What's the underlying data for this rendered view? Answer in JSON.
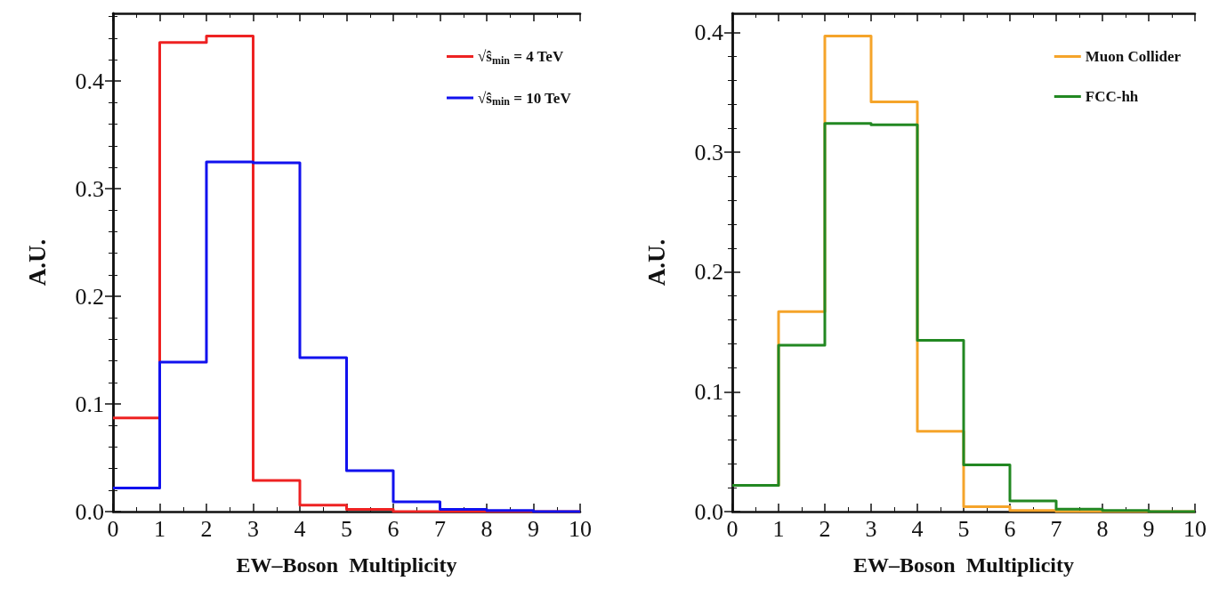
{
  "chart_data": [
    {
      "type": "histogram",
      "xlabel": "EW–Boson  Multiplicity",
      "ylabel": "A.U.",
      "bins": [
        0,
        1,
        2,
        3,
        4,
        5,
        6,
        7,
        8,
        9,
        10
      ],
      "series": [
        {
          "name": "√ŝ$_{min}$ = 4 TeV",
          "color": "#ee2222",
          "values": [
            0.087,
            0.436,
            0.442,
            0.029,
            0.006,
            0.002,
            0,
            0,
            0,
            0
          ]
        },
        {
          "name": "√ŝ$_{min}$ = 10 TeV",
          "color": "#1111ee",
          "values": [
            0.022,
            0.139,
            0.325,
            0.324,
            0.143,
            0.038,
            0.009,
            0.002,
            0.001,
            0
          ]
        }
      ],
      "xlim": [
        0,
        10
      ],
      "xticks": [
        0,
        1,
        2,
        3,
        4,
        5,
        6,
        7,
        8,
        9,
        10
      ],
      "ylim": [
        0,
        0.463
      ],
      "yticks": [
        {
          "value": 0,
          "label": "0.0"
        },
        0.1,
        0.2,
        0.3,
        0.4
      ],
      "grid": false,
      "legend": "top right"
    },
    {
      "type": "histogram",
      "xlabel": "EW–Boson  Multiplicity",
      "ylabel": "A.U.",
      "bins": [
        0,
        1,
        2,
        3,
        4,
        5,
        6,
        7,
        8,
        9,
        10
      ],
      "series": [
        {
          "name": "Muon Collider",
          "color": "#f5a42a",
          "values": [
            0.022,
            0.167,
            0.397,
            0.342,
            0.067,
            0.004,
            0.001,
            0,
            0,
            0
          ]
        },
        {
          "name": "FCC-hh",
          "color": "#228822",
          "values": [
            0.022,
            0.139,
            0.324,
            0.323,
            0.143,
            0.039,
            0.009,
            0.002,
            0.001,
            0
          ]
        }
      ],
      "xlim": [
        0,
        10
      ],
      "xticks": [
        0,
        1,
        2,
        3,
        4,
        5,
        6,
        7,
        8,
        9,
        10
      ],
      "ylim": [
        0,
        0.416
      ],
      "yticks": [
        {
          "value": 0,
          "label": "0.0"
        },
        0.1,
        0.2,
        0.3,
        0.4
      ],
      "grid": false,
      "legend": "top right"
    }
  ]
}
